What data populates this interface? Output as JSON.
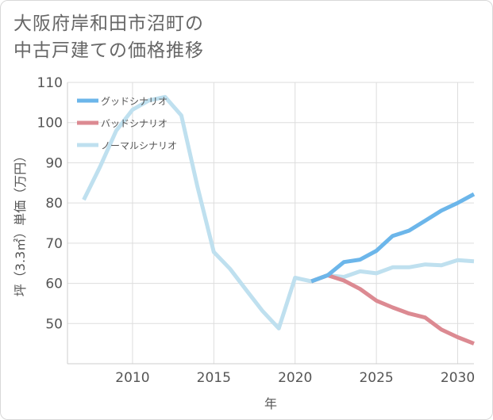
{
  "title_line1": "大阪府岸和田市沼町の",
  "title_line2": "中古戸建ての価格推移",
  "chart_data": {
    "type": "line",
    "xlabel": "年",
    "ylabel": "坪（3.3㎡）単価（万円）",
    "xlim": [
      2006,
      2031
    ],
    "ylim": [
      40,
      110
    ],
    "xticks": [
      2010,
      2015,
      2020,
      2025,
      2030
    ],
    "yticks": [
      50,
      60,
      70,
      80,
      90,
      100,
      110
    ],
    "grid": true,
    "legend_position": "top-left",
    "series": [
      {
        "name": "グッドシナリオ",
        "color": "#6cb6ea",
        "x": [
          2021,
          2022,
          2023,
          2024,
          2025,
          2026,
          2027,
          2028,
          2029,
          2030,
          2031
        ],
        "y": [
          60.5,
          62.0,
          65.3,
          65.9,
          68.1,
          71.8,
          73.1,
          75.6,
          78.1,
          80.0,
          82.2
        ]
      },
      {
        "name": "バッドシナリオ",
        "color": "#dc8a92",
        "x": [
          2021,
          2022,
          2023,
          2024,
          2025,
          2026,
          2027,
          2028,
          2029,
          2030,
          2031
        ],
        "y": [
          60.5,
          62.0,
          60.7,
          58.6,
          55.7,
          54.0,
          52.5,
          51.5,
          48.5,
          46.6,
          45.0
        ]
      },
      {
        "name": "ノーマルシナリオ",
        "color": "#bfe0ef",
        "x": [
          2007,
          2008,
          2009,
          2010,
          2011,
          2012,
          2013,
          2014,
          2015,
          2016,
          2017,
          2018,
          2019,
          2020,
          2021,
          2022,
          2023,
          2024,
          2025,
          2026,
          2027,
          2028,
          2029,
          2030,
          2031
        ],
        "y": [
          80.8,
          89.0,
          98.0,
          103.2,
          105.5,
          106.4,
          101.8,
          84.0,
          67.8,
          63.6,
          58.3,
          53.1,
          48.8,
          61.4,
          60.5,
          62.0,
          61.6,
          63.0,
          62.5,
          64.0,
          64.0,
          64.7,
          64.5,
          65.8,
          65.5
        ]
      }
    ]
  }
}
